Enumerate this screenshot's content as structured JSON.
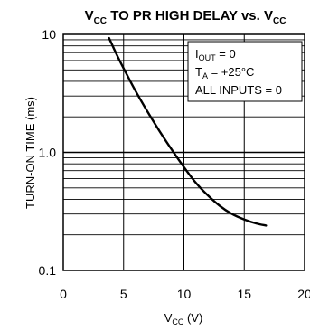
{
  "chart_data": {
    "type": "line",
    "title": {
      "main": "V",
      "sub1": "CC",
      "mid": " TO PR HIGH DELAY vs. V",
      "sub2": "CC"
    },
    "xlabel": {
      "main": "V",
      "sub": "CC",
      "rest": " (V)"
    },
    "ylabel": "TURN-ON TIME (ms)",
    "xlim": [
      0,
      20
    ],
    "ylim": [
      0.1,
      10
    ],
    "yscale": "log",
    "grid": true,
    "x_ticks": [
      "0",
      "5",
      "10",
      "15",
      "20"
    ],
    "y_ticks": [
      "0.1",
      "1.0",
      "10"
    ],
    "annotations": {
      "line1": {
        "main": "I",
        "sub": "OUT",
        "rest": " = 0"
      },
      "line2": {
        "main": "T",
        "sub": "A",
        "rest": " = +25°C"
      },
      "line3": "ALL INPUTS = 0"
    },
    "series": [
      {
        "x": [
          3.8,
          4.5,
          5.3,
          6.0,
          7.0,
          8.0,
          9.0,
          10.0,
          11.0,
          12.0,
          13.0,
          14.0,
          15.0,
          16.0,
          16.8
        ],
        "y": [
          9.3,
          6.5,
          4.5,
          3.3,
          2.2,
          1.5,
          1.05,
          0.75,
          0.55,
          0.43,
          0.35,
          0.3,
          0.27,
          0.25,
          0.24
        ]
      }
    ]
  }
}
